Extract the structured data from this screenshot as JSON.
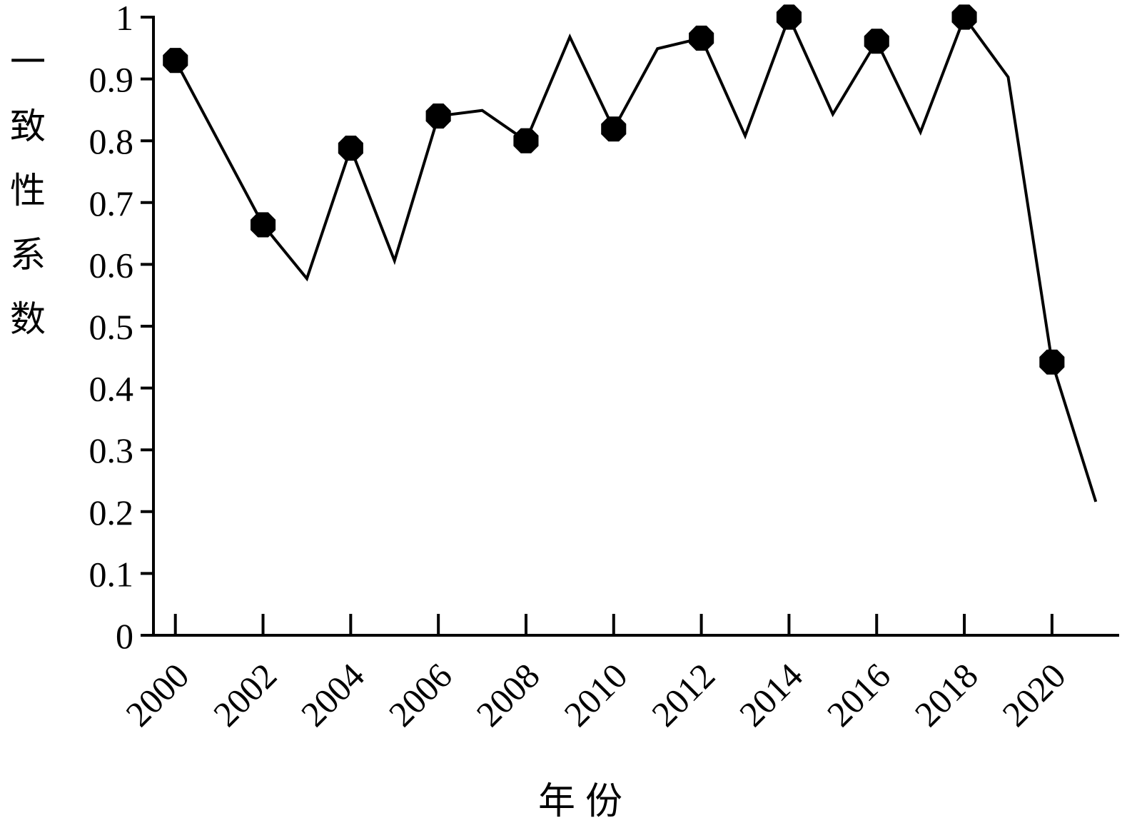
{
  "chart_data": {
    "type": "line",
    "x_label": "年份",
    "y_label": "一致性系数",
    "x": [
      2000,
      2002,
      2003,
      2004,
      2005,
      2006,
      2007,
      2008,
      2009,
      2010,
      2011,
      2012,
      2013,
      2014,
      2015,
      2016,
      2017,
      2018,
      2019,
      2020,
      2021
    ],
    "series": [
      {
        "color": "#000000",
        "values": [
          0.93,
          0.664,
          0.577,
          0.788,
          0.606,
          0.84,
          0.849,
          0.8,
          0.968,
          0.819,
          0.949,
          0.966,
          0.808,
          1.0,
          0.843,
          0.961,
          0.814,
          1.0,
          0.903,
          0.442,
          0.216
        ]
      }
    ],
    "xlim": [
      1999.5,
      2021.5
    ],
    "xticks": [
      2000,
      2002,
      2004,
      2006,
      2008,
      2010,
      2012,
      2014,
      2016,
      2018,
      2020
    ],
    "ylim": [
      0,
      1
    ],
    "yticks": [
      0,
      0.1,
      0.2,
      0.3,
      0.4,
      0.5,
      0.6,
      0.7,
      0.8,
      0.9,
      1
    ],
    "grid": false
  }
}
